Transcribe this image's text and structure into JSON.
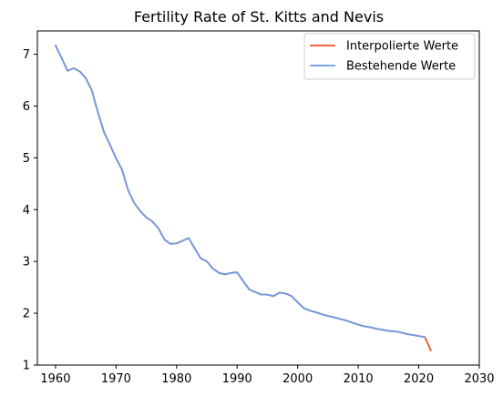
{
  "chart_data": {
    "type": "line",
    "title": "Fertility Rate of St. Kitts and Nevis",
    "xlabel": "",
    "ylabel": "",
    "xlim": [
      1957,
      2030
    ],
    "ylim": [
      1,
      7.45
    ],
    "xticks": [
      1960,
      1970,
      1980,
      1990,
      2000,
      2010,
      2020,
      2030
    ],
    "yticks": [
      1,
      2,
      3,
      4,
      5,
      6,
      7
    ],
    "grid": false,
    "legend_position": "top-right",
    "series": [
      {
        "name": "Interpolierte Werte",
        "color": "#f4511e",
        "x": [
          1960,
          1961,
          1962,
          1963,
          1964,
          1965,
          1966,
          1967,
          1968,
          1969,
          1970,
          1971,
          1972,
          1973,
          1974,
          1975,
          1976,
          1977,
          1978,
          1979,
          1980,
          1981,
          1982,
          1983,
          1984,
          1985,
          1986,
          1987,
          1988,
          1989,
          1990,
          1991,
          1992,
          1993,
          1994,
          1995,
          1996,
          1997,
          1998,
          1999,
          2000,
          2001,
          2002,
          2003,
          2004,
          2005,
          2006,
          2007,
          2008,
          2009,
          2010,
          2011,
          2012,
          2013,
          2014,
          2015,
          2016,
          2017,
          2018,
          2019,
          2020,
          2021,
          2022
        ],
        "y": [
          7.17,
          6.93,
          6.68,
          6.73,
          6.67,
          6.54,
          6.3,
          5.88,
          5.5,
          5.25,
          4.99,
          4.77,
          4.37,
          4.13,
          3.97,
          3.85,
          3.77,
          3.64,
          3.42,
          3.34,
          3.35,
          3.4,
          3.45,
          3.25,
          3.06,
          3.0,
          2.86,
          2.78,
          2.75,
          2.78,
          2.79,
          2.62,
          2.46,
          2.41,
          2.36,
          2.36,
          2.33,
          2.4,
          2.38,
          2.33,
          2.21,
          2.1,
          2.05,
          2.02,
          1.98,
          1.95,
          1.92,
          1.89,
          1.86,
          1.82,
          1.78,
          1.75,
          1.73,
          1.7,
          1.68,
          1.66,
          1.65,
          1.63,
          1.6,
          1.58,
          1.56,
          1.54,
          1.28
        ]
      },
      {
        "name": "Bestehende Werte",
        "color": "#6a9ae6",
        "x": [
          1960,
          1961,
          1962,
          1963,
          1964,
          1965,
          1966,
          1967,
          1968,
          1969,
          1970,
          1971,
          1972,
          1973,
          1974,
          1975,
          1976,
          1977,
          1978,
          1979,
          1980,
          1981,
          1982,
          1983,
          1984,
          1985,
          1986,
          1987,
          1988,
          1989,
          1990,
          1991,
          1992,
          1993,
          1994,
          1995,
          1996,
          1997,
          1998,
          1999,
          2000,
          2001,
          2002,
          2003,
          2004,
          2005,
          2006,
          2007,
          2008,
          2009,
          2010,
          2011,
          2012,
          2013,
          2014,
          2015,
          2016,
          2017,
          2018,
          2019,
          2020,
          2021
        ],
        "y": [
          7.17,
          6.93,
          6.68,
          6.73,
          6.67,
          6.54,
          6.3,
          5.88,
          5.5,
          5.25,
          4.99,
          4.77,
          4.37,
          4.13,
          3.97,
          3.85,
          3.77,
          3.64,
          3.42,
          3.34,
          3.35,
          3.4,
          3.45,
          3.25,
          3.06,
          3.0,
          2.86,
          2.78,
          2.75,
          2.78,
          2.79,
          2.62,
          2.46,
          2.41,
          2.36,
          2.36,
          2.33,
          2.4,
          2.38,
          2.33,
          2.21,
          2.1,
          2.05,
          2.02,
          1.98,
          1.95,
          1.92,
          1.89,
          1.86,
          1.82,
          1.78,
          1.75,
          1.73,
          1.7,
          1.68,
          1.66,
          1.65,
          1.63,
          1.6,
          1.58,
          1.56,
          1.54
        ]
      }
    ]
  }
}
